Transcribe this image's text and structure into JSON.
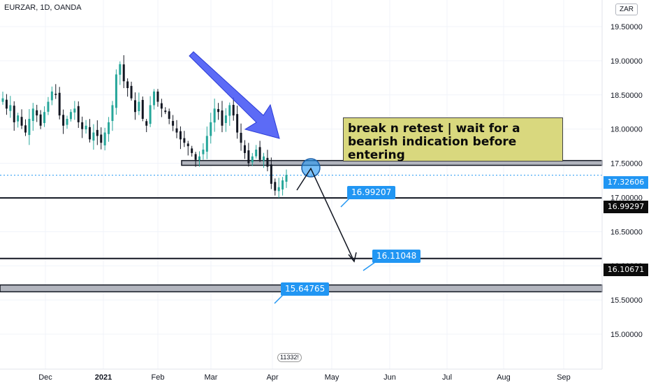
{
  "symbol": {
    "label": "EURZAR, 1D, OANDA",
    "currency": "ZAR"
  },
  "note": {
    "text": "break n retest | wait for a bearish indication before entering"
  },
  "callouts": [
    {
      "id": "callout-1",
      "text": "16.99207"
    },
    {
      "id": "callout-2",
      "text": "16.11048"
    },
    {
      "id": "callout-3",
      "text": "15.64765"
    }
  ],
  "price_tags": {
    "current": "17.32606",
    "level_1": "16.99297",
    "level_2": "16.10671"
  },
  "events_marker": "11332!",
  "colors": {
    "up": "#26a69a",
    "down": "#131722",
    "arrow_big": "#3f51f5",
    "accent": "#2196f3",
    "zone_fill": "#b2b5be",
    "note_bg": "#d9d87e"
  },
  "chart_data": {
    "type": "candlestick",
    "y_axis": {
      "ylim": [
        14.75,
        19.8
      ],
      "ticks": [
        15.0,
        15.5,
        16.0,
        16.5,
        17.0,
        17.5,
        18.0,
        18.5,
        19.0,
        19.5
      ],
      "tick_labels": [
        "15.00000",
        "15.50000",
        "16.00000",
        "16.50000",
        "17.00000",
        "17.50000",
        "18.00000",
        "18.50000",
        "19.00000",
        "19.50000"
      ]
    },
    "x_axis": {
      "tick_labels": [
        "Dec",
        "2021",
        "Feb",
        "Mar",
        "Apr",
        "May",
        "Jun",
        "Jul",
        "Aug",
        "Sep"
      ]
    },
    "closes": [
      18.45,
      18.3,
      18.35,
      18.1,
      18.2,
      18.05,
      17.95,
      18.15,
      18.3,
      18.2,
      18.05,
      18.25,
      18.4,
      18.55,
      18.5,
      18.2,
      18.05,
      18.15,
      18.25,
      18.3,
      18.1,
      18.0,
      18.05,
      17.85,
      17.95,
      17.9,
      17.8,
      17.95,
      18.1,
      18.35,
      18.8,
      18.95,
      18.7,
      18.6,
      18.45,
      18.25,
      18.4,
      18.15,
      18.05,
      18.35,
      18.55,
      18.4,
      18.3,
      18.25,
      18.15,
      18.05,
      17.95,
      17.85,
      17.8,
      17.75,
      17.65,
      17.55,
      17.6,
      17.7,
      17.9,
      18.1,
      18.3,
      18.25,
      18.05,
      18.2,
      18.35,
      18.2,
      17.95,
      17.8,
      17.65,
      17.5,
      17.6,
      17.7,
      17.55,
      17.6,
      17.45,
      17.2,
      17.1,
      17.15,
      17.25,
      17.33
    ],
    "levels": {
      "resistance_zone": [
        17.47,
        17.54
      ],
      "support_1": 16.99297,
      "support_2": 16.10671,
      "support_zone": [
        15.62,
        15.72
      ],
      "current_price": 17.32606
    }
  }
}
